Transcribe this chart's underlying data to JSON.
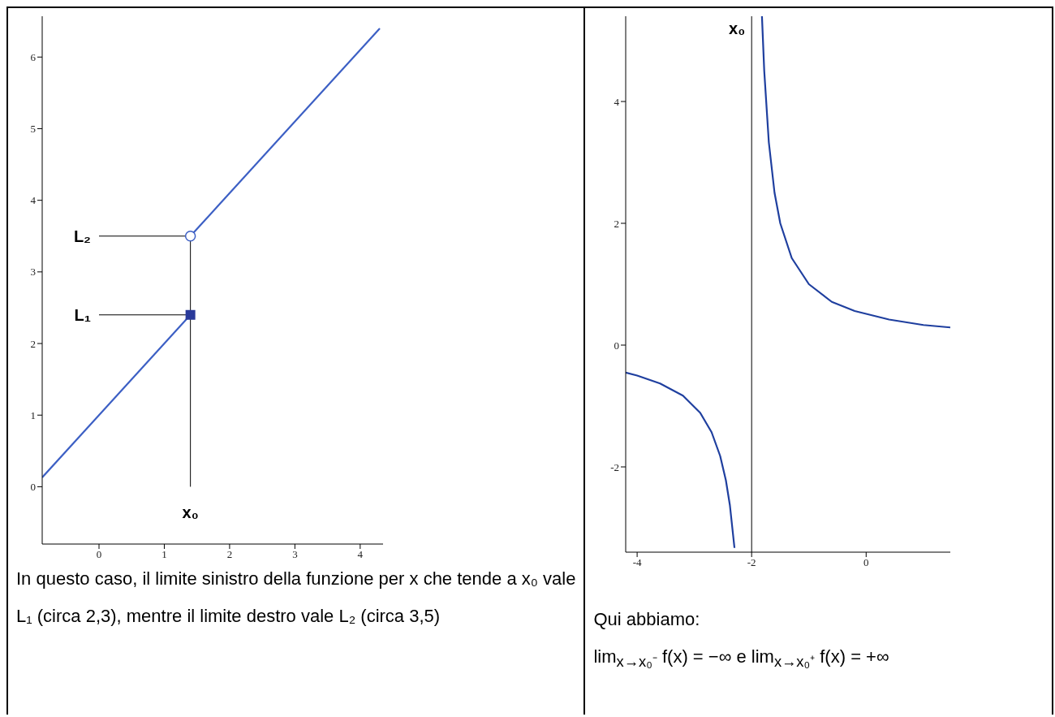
{
  "chart_data": [
    {
      "type": "line",
      "xlim": [
        -0.87,
        4.35
      ],
      "ylim": [
        -0.8,
        6.57
      ],
      "xticks": [
        0,
        1,
        2,
        3,
        4
      ],
      "yticks": [
        0,
        1,
        2,
        3,
        4,
        5,
        6
      ],
      "series": [
        {
          "color": "#3c5fc4",
          "x": [
            -0.87,
            1.4
          ],
          "values": [
            0.13,
            2.4
          ]
        },
        {
          "color": "#3c5fc4",
          "x": [
            1.4,
            4.3
          ],
          "values": [
            3.5,
            6.4
          ]
        },
        {
          "type": "scatter",
          "marker": "square",
          "color": "#2a3a9a",
          "x": [
            1.4
          ],
          "values": [
            2.4
          ]
        },
        {
          "type": "scatter",
          "marker": "circle",
          "color": "#3c5fc4",
          "x": [
            1.4
          ],
          "values": [
            3.5
          ]
        }
      ],
      "ref_lines": [
        {
          "axis": "x",
          "value": 1.4,
          "label": "x₀",
          "color": "#000000"
        },
        {
          "axis": "y",
          "value": 2.4,
          "label": "L₁",
          "color": "#000000"
        },
        {
          "axis": "y",
          "value": 3.5,
          "label": "L₂",
          "color": "#000000"
        }
      ],
      "annotations": [
        "In questo caso, il limite sinistro della funzione per x che tende a x₀ vale L₁ (circa 2,3), mentre il limite destro vale L₂ (circa 3,5)"
      ]
    },
    {
      "type": "line",
      "xlim": [
        -4.2,
        1.47
      ],
      "ylim": [
        -3.4,
        5.4
      ],
      "xticks": [
        -4,
        -2,
        0
      ],
      "yticks": [
        -2,
        0,
        2,
        4
      ],
      "series": [
        {
          "color": "#1f3f9f",
          "x": [
            -4.2,
            -4,
            -3.6,
            -3.2,
            -2.9,
            -2.7,
            -2.55,
            -2.45,
            -2.38,
            -2.3
          ],
          "values": [
            -0.45,
            -0.5,
            -0.63,
            -0.83,
            -1.11,
            -1.43,
            -1.82,
            -2.22,
            -2.63,
            -3.33
          ]
        },
        {
          "color": "#1f3f9f",
          "x": [
            -1.82,
            -1.78,
            -1.7,
            -1.6,
            -1.5,
            -1.3,
            -1.0,
            -0.6,
            -0.2,
            0.4,
            1.0,
            1.47
          ],
          "values": [
            5.4,
            4.5,
            3.33,
            2.5,
            2,
            1.43,
            1,
            0.71,
            0.56,
            0.42,
            0.33,
            0.29
          ]
        }
      ],
      "ref_lines": [
        {
          "axis": "x",
          "value": -2,
          "label": "x₀",
          "color": "#000000"
        }
      ],
      "annotations": [
        "Qui abbiamo:",
        "lim$_{x→x₀⁻}$ f(x) = −∞    e    lim$_{x→x₀⁺}$ f(x) = +∞"
      ]
    }
  ]
}
